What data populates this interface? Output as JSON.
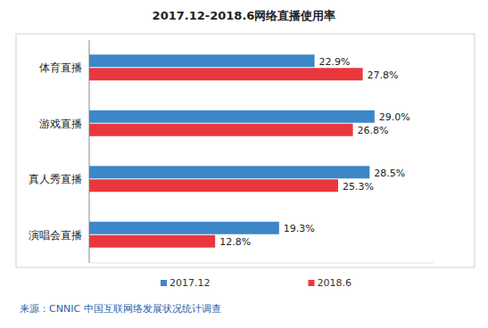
{
  "chart_data": {
    "type": "bar",
    "orientation": "horizontal",
    "title": "2017.12-2018.6网络直播使用率",
    "source": "来源：CNNIC 中国互联网络发展状况统计调查",
    "categories": [
      "体育直播",
      "游戏直播",
      "真人秀直播",
      "演唱会直播"
    ],
    "series": [
      {
        "name": "2017.12",
        "color": "#3b87c8",
        "values": [
          22.9,
          29.0,
          28.5,
          19.3
        ],
        "value_labels": [
          "22.9%",
          "29.0%",
          "28.5%",
          "19.3%"
        ]
      },
      {
        "name": "2018.6",
        "color": "#e8383d",
        "values": [
          27.8,
          26.8,
          25.3,
          12.8
        ],
        "value_labels": [
          "27.8%",
          "26.8%",
          "25.3%",
          "12.8%"
        ]
      }
    ],
    "xlim": [
      0,
      35
    ],
    "grid": false,
    "legend": "bottom",
    "data_labels": true,
    "tick_labels": "y"
  }
}
